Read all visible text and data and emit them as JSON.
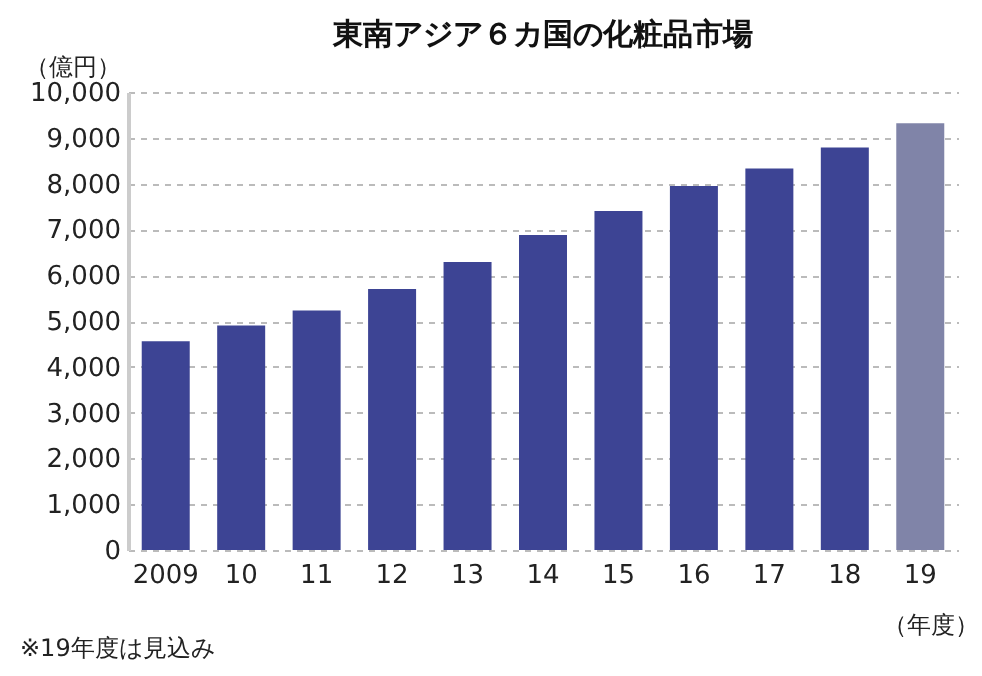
{
  "chart_data": {
    "type": "bar",
    "title": "東南アジア６カ国の化粧品市場",
    "ylabel": "（億円）",
    "xlabel": "（年度）",
    "categories": [
      "2009",
      "10",
      "11",
      "12",
      "13",
      "14",
      "15",
      "16",
      "17",
      "18",
      "19"
    ],
    "values": [
      4560,
      4900,
      5230,
      5700,
      6290,
      6880,
      7400,
      7950,
      8330,
      8790,
      9320
    ],
    "colors": [
      "#3d4494",
      "#3d4494",
      "#3d4494",
      "#3d4494",
      "#3d4494",
      "#3d4494",
      "#3d4494",
      "#3d4494",
      "#3d4494",
      "#3d4494",
      "#8084a8"
    ],
    "ylim": [
      0,
      10000
    ],
    "yticks": [
      0,
      {
        "value": 1000,
        "label": "1,000"
      },
      {
        "value": 2000,
        "label": "2,000"
      },
      {
        "value": 3000,
        "label": "3,000"
      },
      {
        "value": 4000,
        "label": "4,000"
      },
      {
        "value": 5000,
        "label": "5,000"
      },
      {
        "value": 6000,
        "label": "6,000"
      },
      {
        "value": 7000,
        "label": "7,000"
      },
      {
        "value": 8000,
        "label": "8,000"
      },
      {
        "value": 9000,
        "label": "9,000"
      },
      {
        "value": 10000,
        "label": "10,000"
      }
    ],
    "grid": "y",
    "annotations": [
      "※19年度は見込み"
    ]
  }
}
